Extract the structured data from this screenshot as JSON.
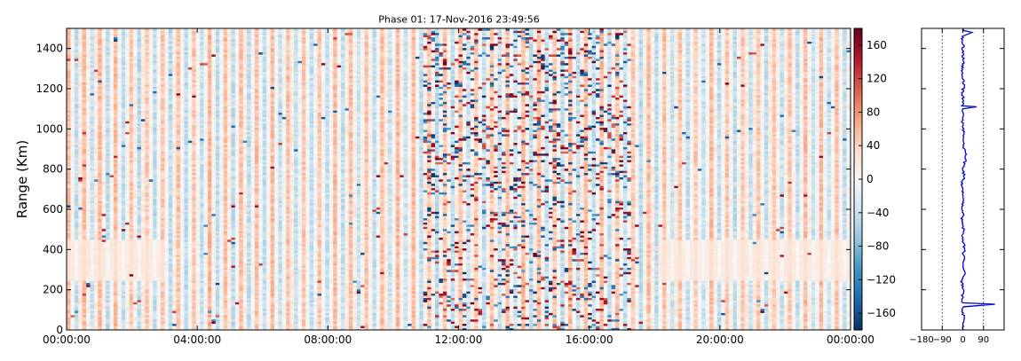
{
  "chart_data": [
    {
      "type": "heatmap",
      "title": "Phase 01: 17-Nov-2016 23:49:56",
      "xlabel": "",
      "ylabel": "Range (Km)",
      "x_tick_labels": [
        "00:00:00",
        "04:00:00",
        "08:00:00",
        "12:00:00",
        "16:00:00",
        "20:00:00",
        "00:00:00"
      ],
      "x_range_hours": [
        0,
        24
      ],
      "y_ticks": [
        0,
        200,
        400,
        600,
        800,
        1000,
        1200,
        1400
      ],
      "ylim": [
        0,
        1500
      ],
      "colormap": "RdBu_r",
      "color_range": [
        -180,
        180
      ],
      "colorbar_ticks": [
        -160,
        -120,
        -80,
        -40,
        0,
        40,
        80,
        120,
        160
      ],
      "grid": false,
      "description_of_data": "Phase values (degrees) vs time and range; vertical striping of positive/negative phase columns with noisy high-magnitude scatter between about 11:00 and 17:00"
    },
    {
      "type": "line",
      "title": "",
      "xlabel": "",
      "ylabel": "",
      "x_tick_labels": [
        "−180",
        "−90",
        "0",
        "90"
      ],
      "xlim": [
        -180,
        180
      ],
      "ylim": [
        0,
        1500
      ],
      "reference_lines_x": [
        -90,
        90
      ],
      "series": [
        {
          "color": "#0000cc",
          "profile": [
            [
              0,
              5
            ],
            [
              30,
              -2
            ],
            [
              60,
              6
            ],
            [
              90,
              -4
            ],
            [
              115,
              3
            ],
            [
              128,
              140
            ],
            [
              135,
              0
            ],
            [
              160,
              -3
            ],
            [
              200,
              4
            ],
            [
              240,
              -5
            ],
            [
              280,
              8
            ],
            [
              320,
              2
            ],
            [
              360,
              6
            ],
            [
              380,
              0
            ],
            [
              400,
              8
            ],
            [
              420,
              5
            ],
            [
              440,
              2
            ],
            [
              460,
              -3
            ],
            [
              490,
              4
            ],
            [
              520,
              0
            ],
            [
              560,
              -5
            ],
            [
              580,
              3
            ],
            [
              600,
              -2
            ],
            [
              620,
              0
            ],
            [
              660,
              2
            ],
            [
              700,
              -4
            ],
            [
              740,
              -2
            ],
            [
              760,
              6
            ],
            [
              780,
              3
            ],
            [
              800,
              -2
            ],
            [
              820,
              4
            ],
            [
              840,
              10
            ],
            [
              860,
              14
            ],
            [
              880,
              12
            ],
            [
              900,
              6
            ],
            [
              920,
              2
            ],
            [
              940,
              -3
            ],
            [
              960,
              0
            ],
            [
              980,
              4
            ],
            [
              1000,
              2
            ],
            [
              1040,
              -3
            ],
            [
              1080,
              2
            ],
            [
              1100,
              0
            ],
            [
              1110,
              60
            ],
            [
              1115,
              0
            ],
            [
              1140,
              3
            ],
            [
              1180,
              -2
            ],
            [
              1220,
              4
            ],
            [
              1260,
              0
            ],
            [
              1300,
              -3
            ],
            [
              1340,
              4
            ],
            [
              1380,
              -2
            ],
            [
              1420,
              2
            ],
            [
              1460,
              -3
            ],
            [
              1480,
              40
            ],
            [
              1490,
              2
            ],
            [
              1500,
              0
            ]
          ]
        }
      ]
    }
  ]
}
